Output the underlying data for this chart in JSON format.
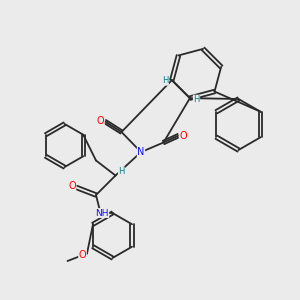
{
  "bg_color": "#ebebeb",
  "bond_color": "#2a2a2a",
  "bond_width": 1.3,
  "atom_colors": {
    "O": "#ff0000",
    "N": "#1010ff",
    "H": "#008080",
    "C": "#2a2a2a"
  },
  "font_size_atom": 7.0,
  "font_size_h": 6.0,
  "figsize": [
    3.0,
    3.0
  ],
  "dpi": 100
}
